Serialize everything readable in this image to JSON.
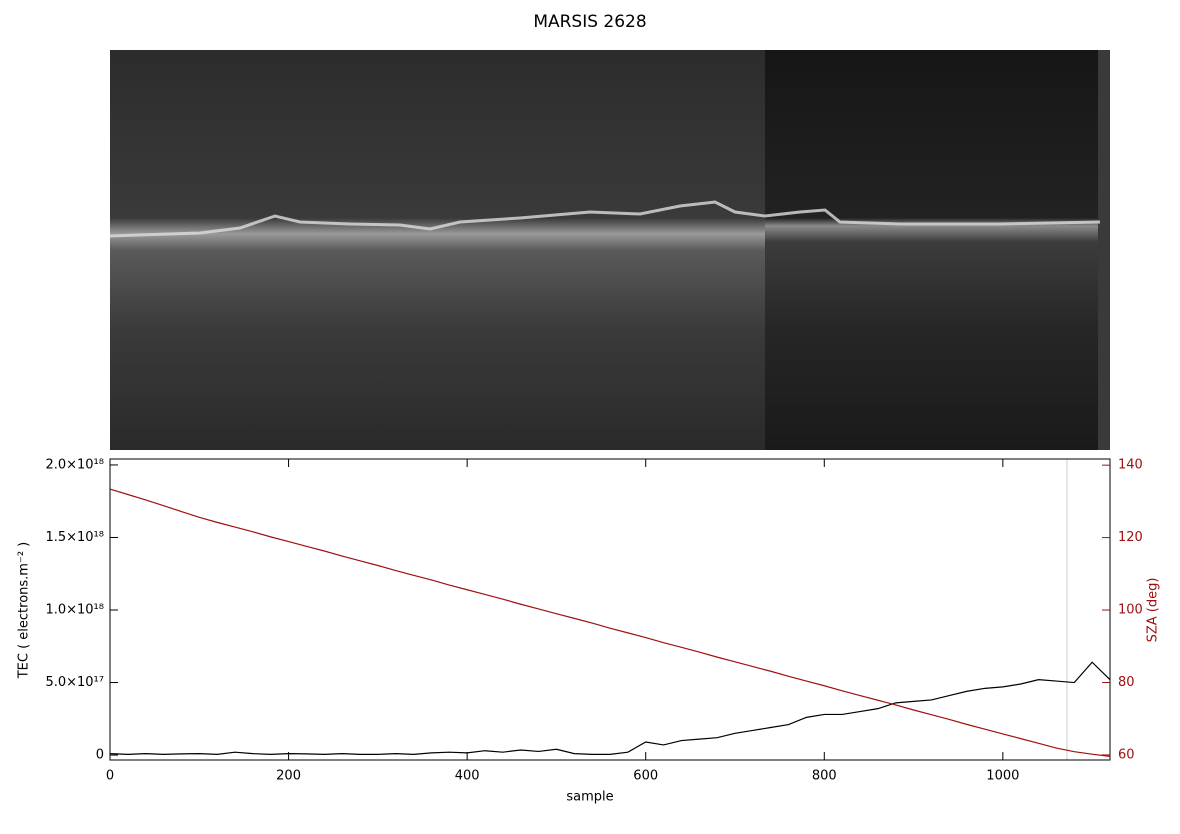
{
  "chart_data": {
    "type": "line",
    "title": "MARSIS 2628",
    "xlabel": "sample",
    "ylabel": "TEC ( electrons.m⁻² )",
    "y2label": "SZA (deg)",
    "x": [
      0,
      20,
      40,
      60,
      80,
      100,
      120,
      140,
      160,
      180,
      200,
      220,
      240,
      260,
      280,
      300,
      320,
      340,
      360,
      380,
      400,
      420,
      440,
      460,
      480,
      500,
      520,
      540,
      560,
      580,
      600,
      620,
      640,
      660,
      680,
      700,
      720,
      740,
      760,
      780,
      800,
      820,
      840,
      860,
      880,
      900,
      920,
      940,
      960,
      980,
      1000,
      1020,
      1040,
      1060,
      1080,
      1100,
      1120
    ],
    "xlim": [
      0,
      1120
    ],
    "xticks": [
      0,
      200,
      400,
      600,
      800,
      1000
    ],
    "ylim": [
      -3.4e+16,
      2.041e+18
    ],
    "yticks": [
      0,
      {
        "value": 5e+17,
        "label": "5.0×10¹⁷"
      },
      {
        "value": 1e+18,
        "label": "1.0×10¹⁸"
      },
      {
        "value": 1.5e+18,
        "label": "1.5×10¹⁸"
      },
      {
        "value": 2e+18,
        "label": "2.0×10¹⁸"
      }
    ],
    "y2lim": [
      58.6,
      141.7
    ],
    "y2ticks": [
      60,
      80,
      100,
      120,
      140
    ],
    "y2color": "#a01010",
    "series": [
      {
        "color": "#000000",
        "values": [
          1e+16,
          5000000000000000.0,
          1e+16,
          5000000000000000.0,
          8000000000000000.0,
          1e+16,
          5000000000000000.0,
          2e+16,
          1e+16,
          5000000000000000.0,
          1e+16,
          8000000000000000.0,
          5000000000000000.0,
          1e+16,
          5000000000000000.0,
          5000000000000000.0,
          1e+16,
          5000000000000000.0,
          1.5e+16,
          2e+16,
          1.5e+16,
          3e+16,
          2e+16,
          3.5e+16,
          2.5e+16,
          4e+16,
          1e+16,
          5000000000000000.0,
          5000000000000000.0,
          2e+16,
          9e+16,
          7e+16,
          1e+17,
          1.1e+17,
          1.2e+17,
          1.5e+17,
          1.7e+17,
          1.9e+17,
          2.1e+17,
          2.6e+17,
          2.8e+17,
          2.8e+17,
          3e+17,
          3.2e+17,
          3.6e+17,
          3.7e+17,
          3.8e+17,
          4.1e+17,
          4.4e+17,
          4.6e+17,
          4.7e+17,
          4.9e+17,
          5.2e+17,
          5.1e+17,
          5e+17,
          6.4e+17,
          5.2e+17
        ]
      },
      {
        "color": "#a01010",
        "axis": "y2",
        "values": [
          133.4,
          131.9,
          130.4,
          128.8,
          127.2,
          125.6,
          124.2,
          122.9,
          121.6,
          120.2,
          118.9,
          117.6,
          116.3,
          114.9,
          113.6,
          112.3,
          110.9,
          109.6,
          108.3,
          106.9,
          105.6,
          104.3,
          103.0,
          101.6,
          100.3,
          99.0,
          97.7,
          96.4,
          95.0,
          93.7,
          92.4,
          91.0,
          89.7,
          88.4,
          87.0,
          85.7,
          84.4,
          83.1,
          81.7,
          80.4,
          79.1,
          77.7,
          76.4,
          75.1,
          73.8,
          72.4,
          71.1,
          69.8,
          68.4,
          67.1,
          65.8,
          64.5,
          63.2,
          61.9,
          60.9,
          60.2,
          59.6
        ]
      }
    ]
  }
}
